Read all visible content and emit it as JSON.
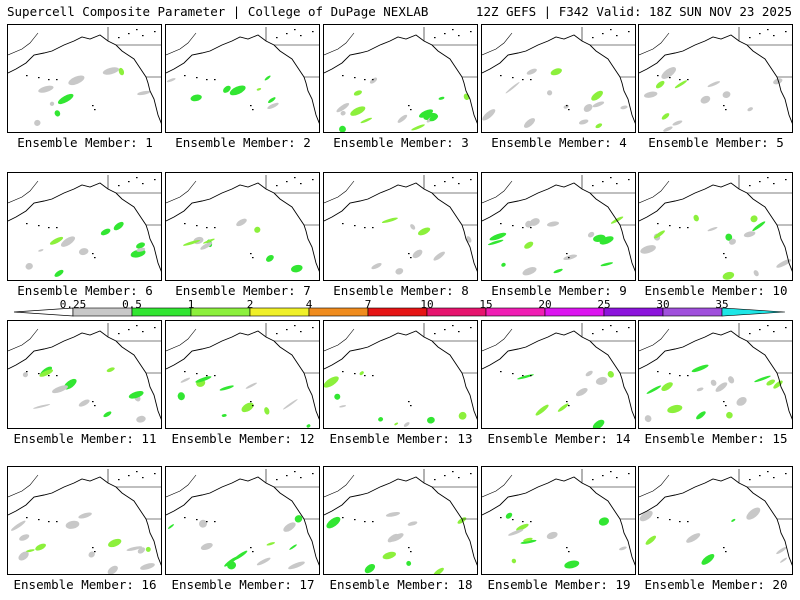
{
  "header": {
    "title": "Supercell Composite Parameter | College of DuPage NEXLAB",
    "run_info": "12Z GEFS | F342 Valid: 18Z SUN NOV 23 2025"
  },
  "member_label_prefix": "Ensemble Member:",
  "members": [
    {
      "id": "1",
      "label": "Ensemble Member: 1"
    },
    {
      "id": "2",
      "label": "Ensemble Member: 2"
    },
    {
      "id": "3",
      "label": "Ensemble Member: 3"
    },
    {
      "id": "4",
      "label": "Ensemble Member: 4"
    },
    {
      "id": "5",
      "label": "Ensemble Member: 5"
    },
    {
      "id": "6",
      "label": "Ensemble Member: 6"
    },
    {
      "id": "7",
      "label": "Ensemble Member: 7"
    },
    {
      "id": "8",
      "label": "Ensemble Member: 8"
    },
    {
      "id": "9",
      "label": "Ensemble Member: 9"
    },
    {
      "id": "10",
      "label": "Ensemble Member: 10"
    },
    {
      "id": "11",
      "label": "Ensemble Member: 11"
    },
    {
      "id": "12",
      "label": "Ensemble Member: 12"
    },
    {
      "id": "13",
      "label": "Ensemble Member: 13"
    },
    {
      "id": "14",
      "label": "Ensemble Member: 14"
    },
    {
      "id": "15",
      "label": "Ensemble Member: 15"
    },
    {
      "id": "16",
      "label": "Ensemble Member: 16"
    },
    {
      "id": "17",
      "label": "Ensemble Member: 17"
    },
    {
      "id": "18",
      "label": "Ensemble Member: 18"
    },
    {
      "id": "19",
      "label": "Ensemble Member: 19"
    },
    {
      "id": "20",
      "label": "Ensemble Member: 20"
    }
  ],
  "colorbar": {
    "labels": [
      "0.25",
      "0.5",
      "1",
      "2",
      "4",
      "7",
      "10",
      "15",
      "20",
      "25",
      "30",
      "35"
    ],
    "colors": [
      "#c8c8c8",
      "#32e632",
      "#8cf03c",
      "#f0f028",
      "#f08c1e",
      "#e61414",
      "#e6146e",
      "#f01eb4",
      "#dc14f0",
      "#8c14dc",
      "#a050dc",
      "#1ee6e6"
    ]
  },
  "colors": {
    "land_line": "#000000",
    "field_light": "#c8c8c8",
    "field_green": "#32e632",
    "field_lime": "#8cf03c",
    "field_yellow": "#f0f028"
  }
}
